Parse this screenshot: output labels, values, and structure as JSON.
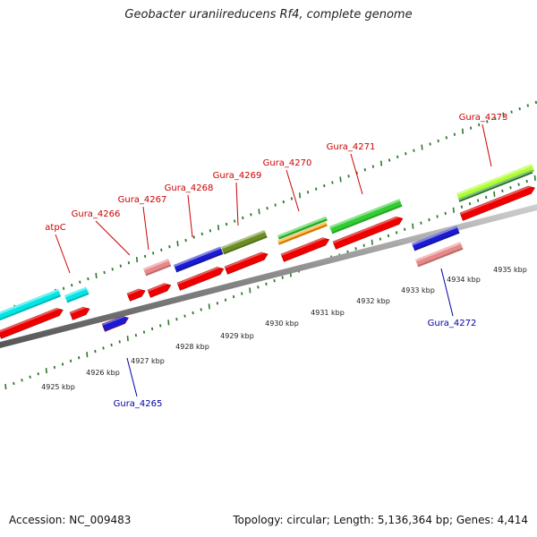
{
  "title": "Geobacter uraniireducens Rf4, complete genome",
  "footer": {
    "accession": "Accession: NC_009483",
    "stats": "Topology: circular; Length: 5,136,364 bp; Genes: 4,414"
  },
  "colors": {
    "backbone": "#888888",
    "tick": "#2a7a2a",
    "forward_label": "#cc0000",
    "reverse_label": "#0000aa"
  },
  "kbp_labels": [
    "4925 kbp",
    "4926 kbp",
    "4927 kbp",
    "4928 kbp",
    "4929 kbp",
    "4930 kbp",
    "4931 kbp",
    "4932 kbp",
    "4933 kbp",
    "4934 kbp",
    "4935 kbp"
  ],
  "gene_labels": [
    {
      "text": "atpC",
      "strand": "forward"
    },
    {
      "text": "Gura_4266",
      "strand": "forward"
    },
    {
      "text": "Gura_4267",
      "strand": "forward"
    },
    {
      "text": "Gura_4268",
      "strand": "forward"
    },
    {
      "text": "Gura_4269",
      "strand": "forward"
    },
    {
      "text": "Gura_4270",
      "strand": "forward"
    },
    {
      "text": "Gura_4271",
      "strand": "forward"
    },
    {
      "text": "Gura_4273",
      "strand": "forward"
    },
    {
      "text": "Gura_4272",
      "strand": "reverse"
    },
    {
      "text": "Gura_4265",
      "strand": "reverse"
    }
  ],
  "features": [
    {
      "strand": "forward",
      "color": "#00e5e5"
    },
    {
      "strand": "forward",
      "color": "#00e5e5"
    },
    {
      "strand": "forward",
      "color": "#e88888"
    },
    {
      "strand": "forward",
      "color": "#1a1ad0"
    },
    {
      "strand": "forward",
      "color": "#6b8e23"
    },
    {
      "strand": "forward",
      "color": "#32cd32"
    },
    {
      "strand": "forward",
      "color": "#ff9900"
    },
    {
      "strand": "forward",
      "color": "#32cd32"
    },
    {
      "strand": "forward",
      "color": "#adff2f"
    },
    {
      "strand": "forward",
      "color": "#228b22"
    },
    {
      "strand": "reverse",
      "color": "#1a1ad0"
    },
    {
      "strand": "reverse",
      "color": "#e88888"
    },
    {
      "strand": "reverse",
      "color": "#1a1ad0"
    },
    {
      "strand": "cds",
      "color": "#ee0000"
    }
  ]
}
